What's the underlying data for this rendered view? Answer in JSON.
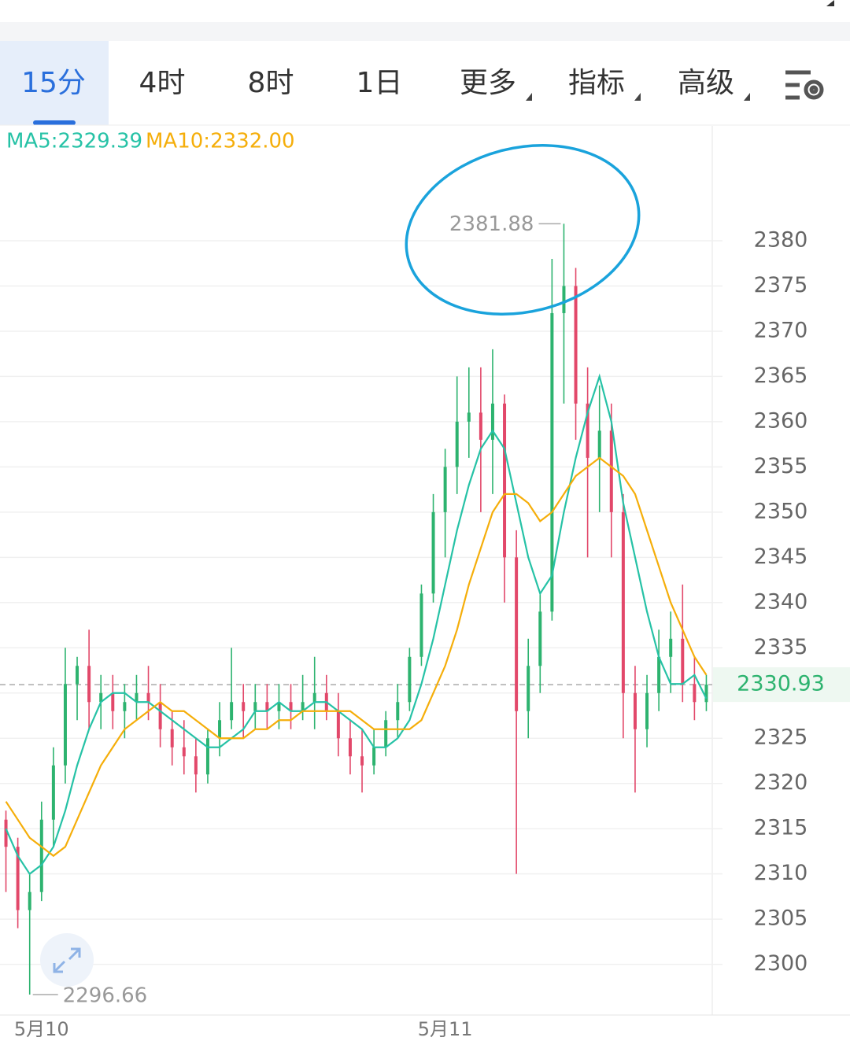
{
  "tabs": [
    "15分",
    "4时",
    "8时",
    "1日",
    "更多",
    "指标",
    "高级"
  ],
  "chart_data": {
    "type": "candlestick",
    "categories": [
      null,
      null,
      null,
      "5月10",
      null,
      null,
      null,
      null,
      null,
      null,
      null,
      null,
      null,
      null,
      null,
      null,
      null,
      null,
      null,
      null,
      null,
      null,
      null,
      null,
      null,
      null,
      null,
      null,
      null,
      null,
      null,
      null,
      null,
      null,
      null,
      null,
      null,
      "5月11",
      null,
      null,
      null,
      null,
      null,
      null,
      null,
      null,
      null,
      null,
      null,
      null,
      null,
      null,
      null,
      null,
      null,
      null,
      null,
      null,
      null,
      null
    ],
    "open": [
      2316,
      2313,
      2306,
      2308,
      2316,
      2322,
      2331,
      2333,
      2329,
      2330,
      2328,
      2329,
      2330,
      2329,
      2326,
      2324,
      2323,
      2321,
      2325,
      2327,
      2329,
      2328,
      2329,
      2328,
      2329,
      2328,
      2329,
      2330,
      2328,
      2325,
      2323,
      2322,
      2324,
      2327,
      2329,
      2334,
      2341,
      2350,
      2355,
      2360,
      2361,
      2358,
      2362,
      2345,
      2328,
      2333,
      2339,
      2372,
      2375,
      2362,
      2356,
      2359,
      2350,
      2330,
      2326,
      2330,
      2334,
      2336,
      2331,
      2329
    ],
    "high": [
      2317,
      2314,
      2310,
      2318,
      2324,
      2335,
      2334,
      2337,
      2332,
      2332,
      2331,
      2332,
      2333,
      2331,
      2328,
      2327,
      2325,
      2326,
      2329,
      2335,
      2331,
      2331,
      2331,
      2331,
      2331,
      2332,
      2334,
      2332,
      2330,
      2327,
      2326,
      2326,
      2328,
      2331,
      2335,
      2342,
      2352,
      2357,
      2365,
      2366,
      2366,
      2368,
      2363,
      2348,
      2336,
      2341,
      2378,
      2381.88,
      2377,
      2366,
      2364,
      2362,
      2352,
      2333,
      2332,
      2337,
      2339,
      2342,
      2334,
      2332
    ],
    "low": [
      2308,
      2304,
      2296.66,
      2307,
      2313,
      2320,
      2327,
      2326,
      2326,
      2326,
      2325,
      2327,
      2327,
      2324,
      2322,
      2321,
      2319,
      2320,
      2323,
      2326,
      2325,
      2326,
      2326,
      2326,
      2326,
      2327,
      2326,
      2327,
      2323,
      2321,
      2319,
      2321,
      2323,
      2325,
      2328,
      2333,
      2340,
      2345,
      2352,
      2356,
      2350,
      2352,
      2340,
      2310,
      2325,
      2330,
      2338,
      2362,
      2358,
      2345,
      2350,
      2345,
      2325,
      2319,
      2324,
      2328,
      2330,
      2329,
      2327,
      2328
    ],
    "close": [
      2313,
      2306,
      2308,
      2316,
      2322,
      2331,
      2333,
      2329,
      2330,
      2328,
      2329,
      2330,
      2329,
      2326,
      2324,
      2323,
      2321,
      2325,
      2327,
      2329,
      2328,
      2329,
      2328,
      2329,
      2328,
      2329,
      2330,
      2328,
      2325,
      2323,
      2322,
      2324,
      2327,
      2329,
      2334,
      2341,
      2350,
      2355,
      2360,
      2361,
      2358,
      2362,
      2345,
      2328,
      2333,
      2339,
      2372,
      2375,
      2362,
      2356,
      2359,
      2350,
      2330,
      2326,
      2330,
      2334,
      2336,
      2331,
      2329,
      2330.93
    ],
    "up_color": "#2db36f",
    "down_color": "#e2486a",
    "series": [
      {
        "name": "MA5:2329.39",
        "color": "#26c2a6",
        "values": [
          2315,
          2312,
          2310,
          2311,
          2313,
          2317,
          2322,
          2326,
          2329,
          2330,
          2330,
          2329,
          2329,
          2328,
          2327,
          2326,
          2325,
          2324,
          2324,
          2325,
          2326,
          2328,
          2328,
          2329,
          2328,
          2328,
          2329,
          2329,
          2328,
          2327,
          2326,
          2324,
          2324,
          2325,
          2327,
          2331,
          2336,
          2342,
          2348,
          2353,
          2357,
          2359,
          2357,
          2351,
          2345,
          2341,
          2343,
          2350,
          2356,
          2361,
          2365,
          2360,
          2351,
          2345,
          2339,
          2334,
          2331,
          2331,
          2332,
          2329.39
        ]
      },
      {
        "name": "MA10:2332.00",
        "color": "#f5ae0a",
        "values": [
          2318,
          2316,
          2314,
          2313,
          2312,
          2313,
          2316,
          2319,
          2322,
          2324,
          2326,
          2327,
          2328,
          2329,
          2328,
          2328,
          2327,
          2326,
          2325,
          2325,
          2325,
          2326,
          2326,
          2327,
          2327,
          2328,
          2328,
          2328,
          2328,
          2328,
          2327,
          2326,
          2326,
          2326,
          2326,
          2327,
          2330,
          2333,
          2337,
          2342,
          2346,
          2350,
          2352,
          2352,
          2351,
          2349,
          2350,
          2352,
          2354,
          2355,
          2356,
          2355,
          2354,
          2352,
          2348,
          2344,
          2340,
          2337,
          2334,
          2332
        ]
      }
    ],
    "max_price": 2381.88,
    "min_price": 2296.66,
    "last_price": 2330.93,
    "ylim": [
      2294.4,
      2392.7
    ],
    "yticks": [
      2300,
      2305,
      2310,
      2315,
      2320,
      2325,
      2330,
      2335,
      2340,
      2345,
      2350,
      2355,
      2360,
      2365,
      2370,
      2375,
      2380
    ],
    "grid": true
  }
}
